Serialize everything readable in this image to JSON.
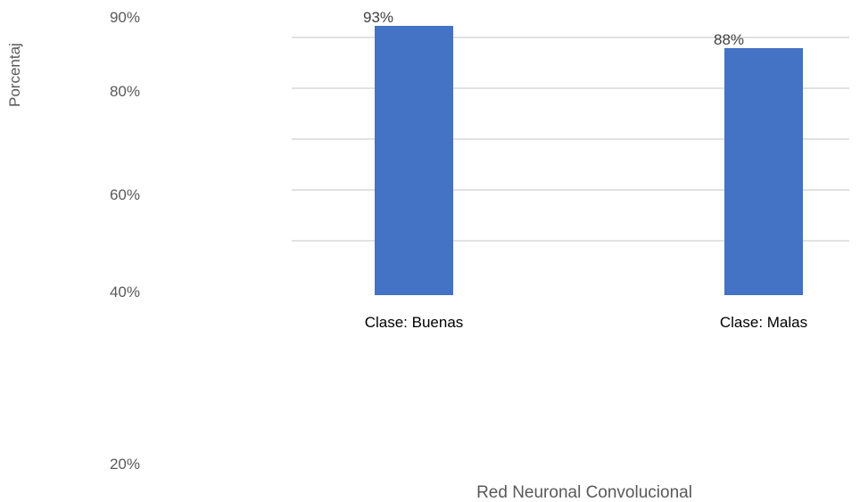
{
  "chart_data": {
    "type": "bar",
    "title": "",
    "ylabel": "Porcentaj",
    "xlabel": "Red Neuronal Convolucional",
    "categories": [
      "Clase: Buenas",
      "Clase: Malas"
    ],
    "series": [
      {
        "values": [
          0.93,
          0.88
        ],
        "data_labels": [
          "93%",
          "88%"
        ]
      }
    ],
    "y_tick_labels": [
      "90%",
      "80%",
      "60%",
      "40%",
      "20%"
    ],
    "grid": true,
    "legend": "none",
    "colors": {
      "bar": "#4472C4",
      "grid": "#D9D9D9",
      "text": "#595959",
      "data_label": "#404040"
    }
  }
}
